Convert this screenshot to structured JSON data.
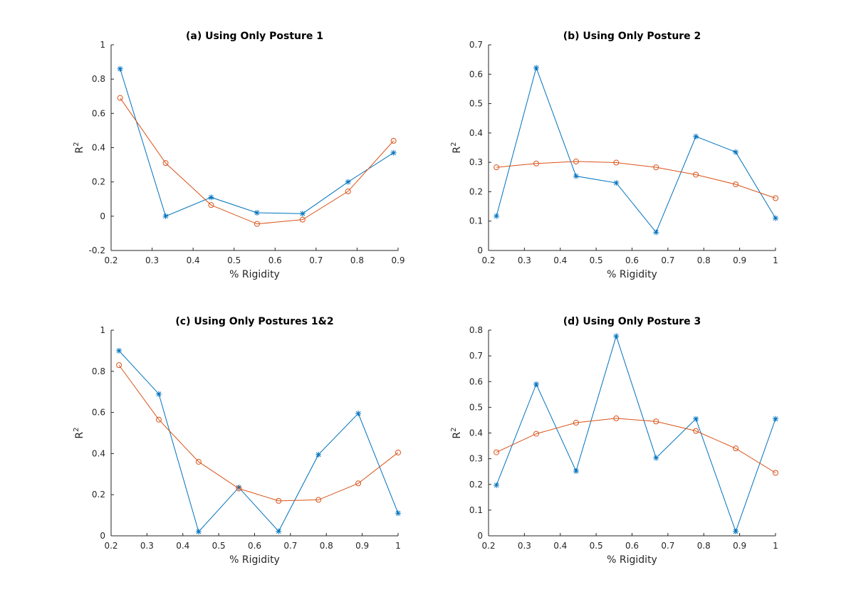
{
  "colors": {
    "series_1": "#0072BD",
    "series_2": "#D95319",
    "axis": "#262626"
  },
  "chart_data": [
    {
      "type": "line",
      "title": "(a) Using Only Posture 1",
      "xlabel": "% Rigidity",
      "ylabel_base": "R",
      "ylabel_sup": "2",
      "xlim": [
        0.2,
        0.9
      ],
      "ylim": [
        -0.2,
        1
      ],
      "xticks": [
        0.2,
        0.3,
        0.4,
        0.5,
        0.6,
        0.7,
        0.8,
        0.9
      ],
      "xtick_labels": [
        "0.2",
        "0.3",
        "0.4",
        "0.5",
        "0.6",
        "0.7",
        "0.8",
        "0.9"
      ],
      "yticks": [
        -0.2,
        0,
        0.2,
        0.4,
        0.6,
        0.8,
        1
      ],
      "ytick_labels": [
        "-0.2",
        "0",
        "0.2",
        "0.4",
        "0.6",
        "0.8",
        "1"
      ],
      "grid": false,
      "series": [
        {
          "marker": "star",
          "x": [
            0.222,
            0.333,
            0.444,
            0.556,
            0.667,
            0.778,
            0.889
          ],
          "y": [
            0.86,
            0.0,
            0.11,
            0.02,
            0.015,
            0.2,
            0.37
          ]
        },
        {
          "marker": "circle",
          "x": [
            0.222,
            0.333,
            0.444,
            0.556,
            0.667,
            0.778,
            0.889
          ],
          "y": [
            0.69,
            0.31,
            0.065,
            -0.045,
            -0.02,
            0.145,
            0.44
          ]
        }
      ]
    },
    {
      "type": "line",
      "title": "(b) Using Only Posture 2",
      "xlabel": "% Rigidity",
      "ylabel_base": "R",
      "ylabel_sup": "2",
      "xlim": [
        0.2,
        1.0
      ],
      "ylim": [
        0,
        0.7
      ],
      "xticks": [
        0.2,
        0.3,
        0.4,
        0.5,
        0.6,
        0.7,
        0.8,
        0.9,
        1.0
      ],
      "xtick_labels": [
        "0.2",
        "0.3",
        "0.4",
        "0.5",
        "0.6",
        "0.7",
        "0.8",
        "0.9",
        "1"
      ],
      "yticks": [
        0,
        0.1,
        0.2,
        0.3,
        0.4,
        0.5,
        0.6,
        0.7
      ],
      "ytick_labels": [
        "0",
        "0.1",
        "0.2",
        "0.3",
        "0.4",
        "0.5",
        "0.6",
        "0.7"
      ],
      "grid": false,
      "series": [
        {
          "marker": "star",
          "x": [
            0.222,
            0.333,
            0.444,
            0.556,
            0.667,
            0.778,
            0.889,
            1.0
          ],
          "y": [
            0.117,
            0.622,
            0.253,
            0.23,
            0.062,
            0.388,
            0.335,
            0.11
          ]
        },
        {
          "marker": "circle",
          "x": [
            0.222,
            0.333,
            0.444,
            0.556,
            0.667,
            0.778,
            0.889,
            1.0
          ],
          "y": [
            0.283,
            0.296,
            0.303,
            0.299,
            0.283,
            0.258,
            0.225,
            0.178
          ]
        }
      ]
    },
    {
      "type": "line",
      "title": "(c) Using Only Postures 1&2",
      "xlabel": "% Rigidity",
      "ylabel_base": "R",
      "ylabel_sup": "2",
      "xlim": [
        0.2,
        1.0
      ],
      "ylim": [
        0,
        1
      ],
      "xticks": [
        0.2,
        0.3,
        0.4,
        0.5,
        0.6,
        0.7,
        0.8,
        0.9,
        1.0
      ],
      "xtick_labels": [
        "0.2",
        "0.3",
        "0.4",
        "0.5",
        "0.6",
        "0.7",
        "0.8",
        "0.9",
        "1"
      ],
      "yticks": [
        0,
        0.2,
        0.4,
        0.6,
        0.8,
        1
      ],
      "ytick_labels": [
        "0",
        "0.2",
        "0.4",
        "0.6",
        "0.8",
        "1"
      ],
      "grid": false,
      "series": [
        {
          "marker": "star",
          "x": [
            0.222,
            0.333,
            0.444,
            0.556,
            0.667,
            0.778,
            0.889,
            1.0
          ],
          "y": [
            0.9,
            0.69,
            0.02,
            0.235,
            0.022,
            0.395,
            0.595,
            0.11
          ]
        },
        {
          "marker": "circle",
          "x": [
            0.222,
            0.333,
            0.444,
            0.556,
            0.667,
            0.778,
            0.889,
            1.0
          ],
          "y": [
            0.83,
            0.565,
            0.36,
            0.23,
            0.17,
            0.175,
            0.255,
            0.405
          ]
        }
      ]
    },
    {
      "type": "line",
      "title": "(d) Using Only Posture 3",
      "xlabel": "% Rigidity",
      "ylabel_base": "R",
      "ylabel_sup": "2",
      "xlim": [
        0.2,
        1.0
      ],
      "ylim": [
        0,
        0.8
      ],
      "xticks": [
        0.2,
        0.3,
        0.4,
        0.5,
        0.6,
        0.7,
        0.8,
        0.9,
        1.0
      ],
      "xtick_labels": [
        "0.2",
        "0.3",
        "0.4",
        "0.5",
        "0.6",
        "0.7",
        "0.8",
        "0.9",
        "1"
      ],
      "yticks": [
        0,
        0.1,
        0.2,
        0.3,
        0.4,
        0.5,
        0.6,
        0.7,
        0.8
      ],
      "ytick_labels": [
        "0",
        "0.1",
        "0.2",
        "0.3",
        "0.4",
        "0.5",
        "0.6",
        "0.7",
        "0.8"
      ],
      "grid": false,
      "series": [
        {
          "marker": "star",
          "x": [
            0.222,
            0.333,
            0.444,
            0.556,
            0.667,
            0.778,
            0.889,
            1.0
          ],
          "y": [
            0.197,
            0.59,
            0.252,
            0.777,
            0.303,
            0.455,
            0.017,
            0.455
          ]
        },
        {
          "marker": "circle",
          "x": [
            0.222,
            0.333,
            0.444,
            0.556,
            0.667,
            0.778,
            0.889,
            1.0
          ],
          "y": [
            0.325,
            0.397,
            0.44,
            0.457,
            0.445,
            0.408,
            0.34,
            0.245
          ]
        }
      ]
    }
  ]
}
